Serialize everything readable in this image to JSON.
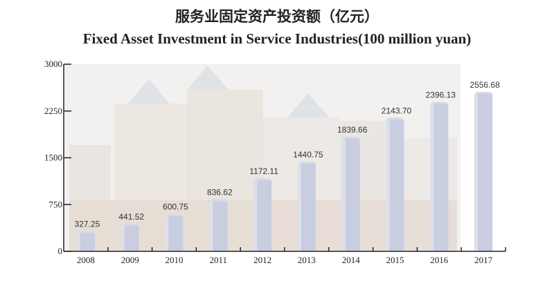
{
  "chart_data": {
    "type": "bar",
    "title": "服务业固定资产投资额（亿元）",
    "subtitle": "Fixed Asset Investment in Service Industries(100 million yuan)",
    "xlabel": "",
    "ylabel": "",
    "categories": [
      "2008",
      "2009",
      "2010",
      "2011",
      "2012",
      "2013",
      "2014",
      "2015",
      "2016",
      "2017"
    ],
    "values": [
      327.25,
      441.52,
      600.75,
      836.62,
      1172.11,
      1440.75,
      1839.66,
      2143.7,
      2396.13,
      2556.68
    ],
    "value_labels": [
      "327.25",
      "441.52",
      "600.75",
      "836.62",
      "1172.11",
      "1440.75",
      "1839.66",
      "2143.70",
      "2396.13",
      "2556.68"
    ],
    "ylim": [
      0,
      3000
    ],
    "yticks": [
      "0",
      "750",
      "1500",
      "2250",
      "3000"
    ],
    "grid": false,
    "colors": {
      "bar": "#c9cde0",
      "bar_side": "#dde0ec",
      "axis": "#222222"
    }
  }
}
